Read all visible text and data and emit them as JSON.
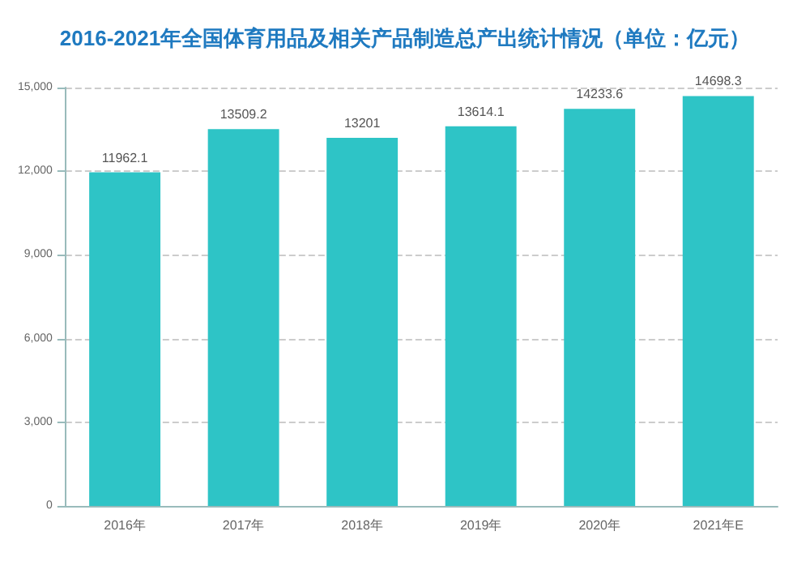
{
  "chart_data": {
    "type": "bar",
    "title": "2016-2021年全国体育用品及相关产品制造总产出统计情况（单位：亿元）",
    "categories": [
      "2016年",
      "2017年",
      "2018年",
      "2019年",
      "2020年",
      "2021年E"
    ],
    "values": [
      11962.1,
      13509.2,
      13201,
      13614.1,
      14233.6,
      14698.3
    ],
    "color": "#2ec4c6",
    "data_labels": true,
    "ylim": [
      0,
      15000
    ],
    "yticks": [
      {
        "value": 0,
        "label": "0"
      },
      {
        "value": 3000,
        "label": "3,000"
      },
      {
        "value": 6000,
        "label": "6,000"
      },
      {
        "value": 9000,
        "label": "9,000"
      },
      {
        "value": 12000,
        "label": "12,000"
      },
      {
        "value": 15000,
        "label": "15,000"
      }
    ],
    "grid": "y"
  }
}
